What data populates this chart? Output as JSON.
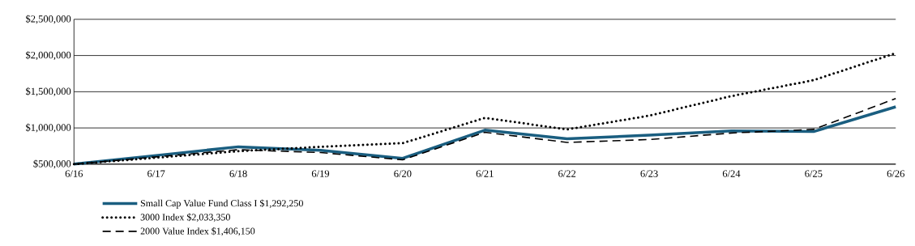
{
  "chart_data": {
    "type": "line",
    "categories": [
      "6/16",
      "6/17",
      "6/18",
      "6/19",
      "6/20",
      "6/21",
      "6/22",
      "6/23",
      "6/24",
      "6/25",
      "6/26"
    ],
    "series": [
      {
        "name": "Small Cap Value Fund Class I $1,292,250",
        "color": "#1a5e80",
        "line_style": "solid",
        "values": [
          500000,
          620000,
          740000,
          690000,
          580000,
          970000,
          850000,
          900000,
          960000,
          950000,
          1292250
        ]
      },
      {
        "name": "3000 Index $2,033,350",
        "color": "#000000",
        "line_style": "dotted",
        "values": [
          500000,
          590000,
          680000,
          740000,
          790000,
          1140000,
          980000,
          1170000,
          1440000,
          1660000,
          2033350
        ]
      },
      {
        "name": "2000 Value Index $1,406,150",
        "color": "#000000",
        "line_style": "dashed",
        "values": [
          500000,
          600000,
          700000,
          660000,
          560000,
          940000,
          800000,
          840000,
          930000,
          980000,
          1406150
        ]
      }
    ],
    "ylim": [
      500000,
      2500000
    ],
    "yticks": [
      {
        "value": 500000,
        "label": "$500,000"
      },
      {
        "value": 1000000,
        "label": "$1,000,000"
      },
      {
        "value": 1500000,
        "label": "$1,500,000"
      },
      {
        "value": 2000000,
        "label": "$2,000,000"
      },
      {
        "value": 2500000,
        "label": "$2,500,000"
      }
    ],
    "grid": "y",
    "legend": "bottom",
    "marker": "none"
  }
}
